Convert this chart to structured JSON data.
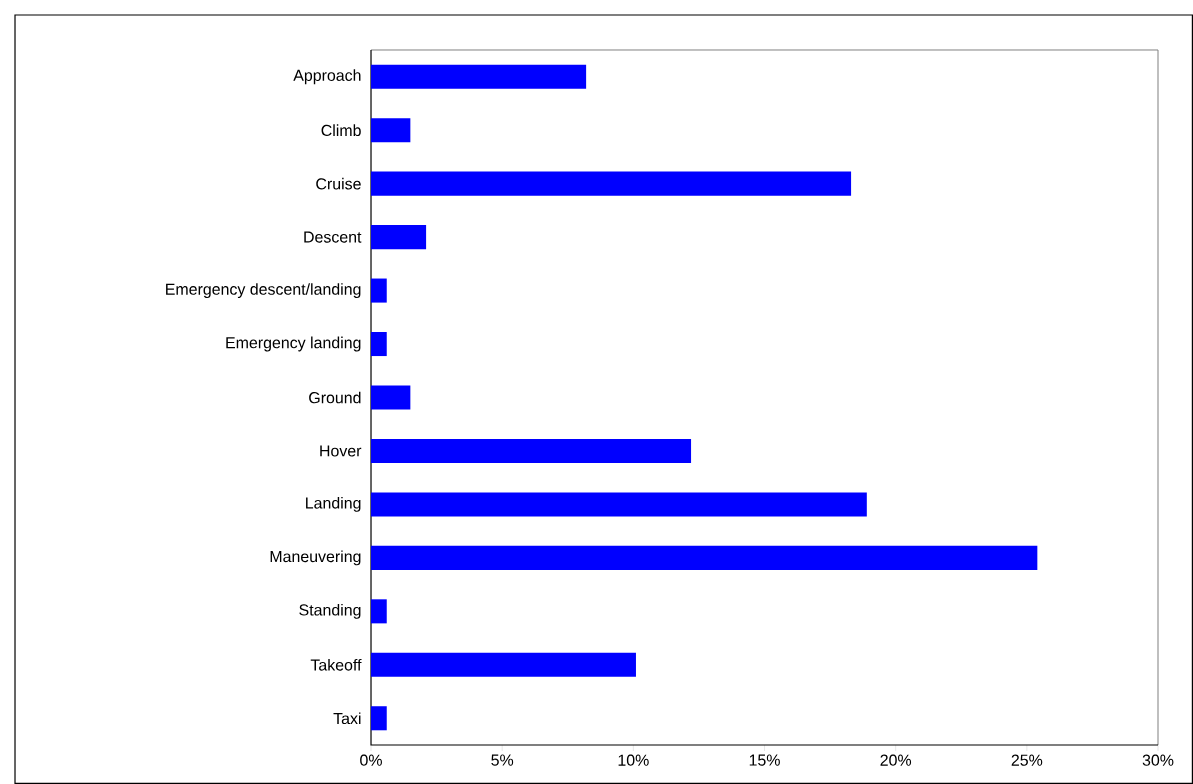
{
  "chart_data": {
    "type": "bar",
    "orientation": "horizontal",
    "categories": [
      "Approach",
      "Climb",
      "Cruise",
      "Descent",
      "Emergency descent/landing",
      "Emergency landing",
      "Ground",
      "Hover",
      "Landing",
      "Maneuvering",
      "Standing",
      "Takeoff",
      "Taxi"
    ],
    "values": [
      8.2,
      1.5,
      18.3,
      2.1,
      0.6,
      0.6,
      1.5,
      12.2,
      18.9,
      25.4,
      0.6,
      10.1,
      0.6
    ],
    "color": "#0000ff",
    "xlim": [
      0,
      30
    ],
    "xticks": [
      {
        "value": 0,
        "label": "0%"
      },
      {
        "value": 5,
        "label": "5%"
      },
      {
        "value": 10,
        "label": "10%"
      },
      {
        "value": 15,
        "label": "15%"
      },
      {
        "value": 20,
        "label": "20%"
      },
      {
        "value": 25,
        "label": "25%"
      },
      {
        "value": 30,
        "label": "30%"
      }
    ],
    "grid": false
  }
}
